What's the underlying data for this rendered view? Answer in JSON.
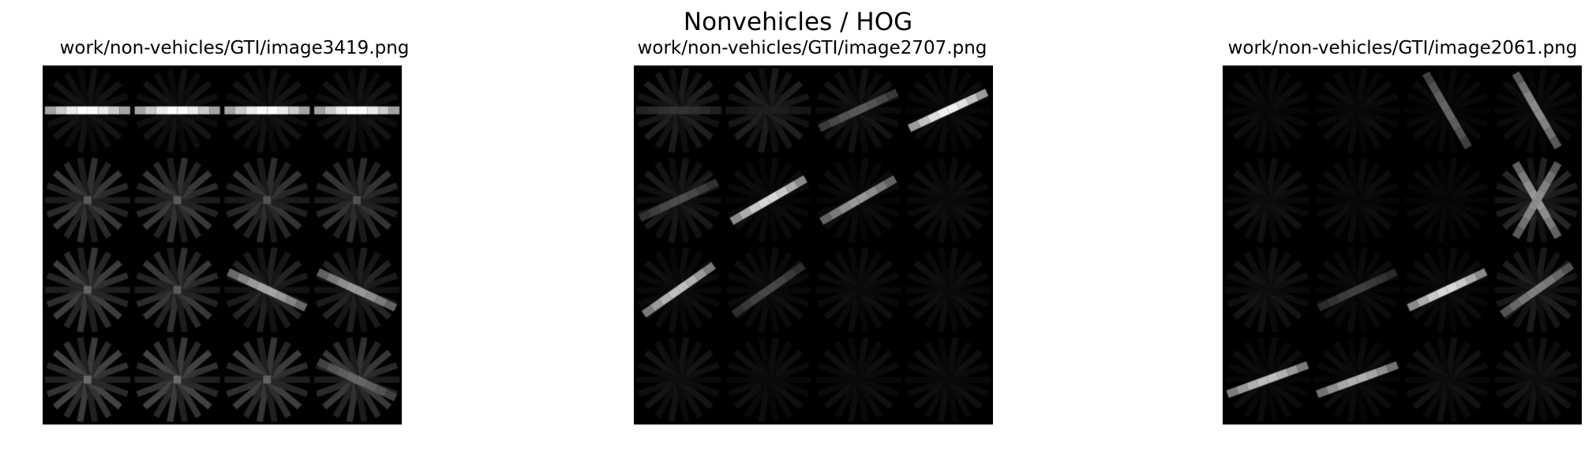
{
  "figure": {
    "title": "Nonvehicles / HOG",
    "colormap": "gray",
    "panels": [
      {
        "title": "work/non-vehicles/GTI/image3419.png",
        "grid": [
          [
            {
              "a": 0,
              "w": 1.0,
              "b": 0.08
            },
            {
              "a": 0,
              "w": 1.0,
              "b": 0.08
            },
            {
              "a": 0,
              "w": 1.0,
              "b": 0.08
            },
            {
              "a": 0,
              "w": 1.0,
              "b": 0.08
            }
          ],
          [
            {
              "a": 0,
              "w": 0,
              "b": 0.22
            },
            {
              "a": 0,
              "w": 0,
              "b": 0.22
            },
            {
              "a": 0,
              "w": 0,
              "b": 0.2
            },
            {
              "a": 0,
              "w": 0,
              "b": 0.2
            }
          ],
          [
            {
              "a": 0,
              "w": 0,
              "b": 0.24
            },
            {
              "a": 0,
              "w": 0,
              "b": 0.22
            },
            {
              "a": -25,
              "w": 0.65,
              "b": 0.14
            },
            {
              "a": -25,
              "w": 0.6,
              "b": 0.14
            }
          ],
          [
            {
              "a": 0,
              "w": 0,
              "b": 0.26
            },
            {
              "a": 0,
              "w": 0,
              "b": 0.26
            },
            {
              "a": 0,
              "w": 0,
              "b": 0.24
            },
            {
              "a": -25,
              "w": 0.4,
              "b": 0.22
            }
          ]
        ]
      },
      {
        "title": "work/non-vehicles/GTI/image2707.png",
        "grid": [
          [
            {
              "a": 0,
              "w": 0.2,
              "b": 0.12
            },
            {
              "a": 0,
              "w": 0.12,
              "b": 0.12
            },
            {
              "a": 25,
              "w": 0.35,
              "b": 0.08
            },
            {
              "a": 25,
              "w": 0.95,
              "b": 0.05
            }
          ],
          [
            {
              "a": 25,
              "w": 0.3,
              "b": 0.1
            },
            {
              "a": 30,
              "w": 0.85,
              "b": 0.05
            },
            {
              "a": 30,
              "w": 0.6,
              "b": 0.05
            },
            {
              "a": 0,
              "w": 0,
              "b": 0.06
            }
          ],
          [
            {
              "a": 35,
              "w": 0.75,
              "b": 0.06
            },
            {
              "a": 35,
              "w": 0.28,
              "b": 0.06
            },
            {
              "a": 0,
              "w": 0,
              "b": 0.06
            },
            {
              "a": 0,
              "w": 0,
              "b": 0.06
            }
          ],
          [
            {
              "a": 0,
              "w": 0,
              "b": 0.08
            },
            {
              "a": 0,
              "w": 0,
              "b": 0.06
            },
            {
              "a": 0,
              "w": 0,
              "b": 0.06
            },
            {
              "a": 0,
              "w": 0,
              "b": 0.06
            }
          ]
        ]
      },
      {
        "title": "work/non-vehicles/GTI/image2061.png",
        "grid": [
          [
            {
              "a": 0,
              "w": 0,
              "b": 0.05
            },
            {
              "a": 0,
              "w": 0,
              "b": 0.05
            },
            {
              "a": -60,
              "w": 0.4,
              "b": 0.04
            },
            {
              "a": -60,
              "w": 0.55,
              "b": 0.05
            }
          ],
          [
            {
              "a": 0,
              "w": 0,
              "b": 0.07
            },
            {
              "a": 0,
              "w": 0,
              "b": 0.05
            },
            {
              "a": 0,
              "w": 0,
              "b": 0.04
            },
            {
              "a": -60,
              "w": 0.6,
              "b": 0.15,
              "a2": 60,
              "w2": 0.55
            }
          ],
          [
            {
              "a": 0,
              "w": 0,
              "b": 0.08
            },
            {
              "a": 25,
              "w": 0.25,
              "b": 0.05
            },
            {
              "a": 25,
              "w": 0.85,
              "b": 0.05
            },
            {
              "a": 35,
              "w": 0.5,
              "b": 0.12
            }
          ],
          [
            {
              "a": 20,
              "w": 0.75,
              "b": 0.05
            },
            {
              "a": 20,
              "w": 0.7,
              "b": 0.05
            },
            {
              "a": 0,
              "w": 0,
              "b": 0.07
            },
            {
              "a": 0,
              "w": 0,
              "b": 0.08
            }
          ]
        ]
      }
    ]
  }
}
